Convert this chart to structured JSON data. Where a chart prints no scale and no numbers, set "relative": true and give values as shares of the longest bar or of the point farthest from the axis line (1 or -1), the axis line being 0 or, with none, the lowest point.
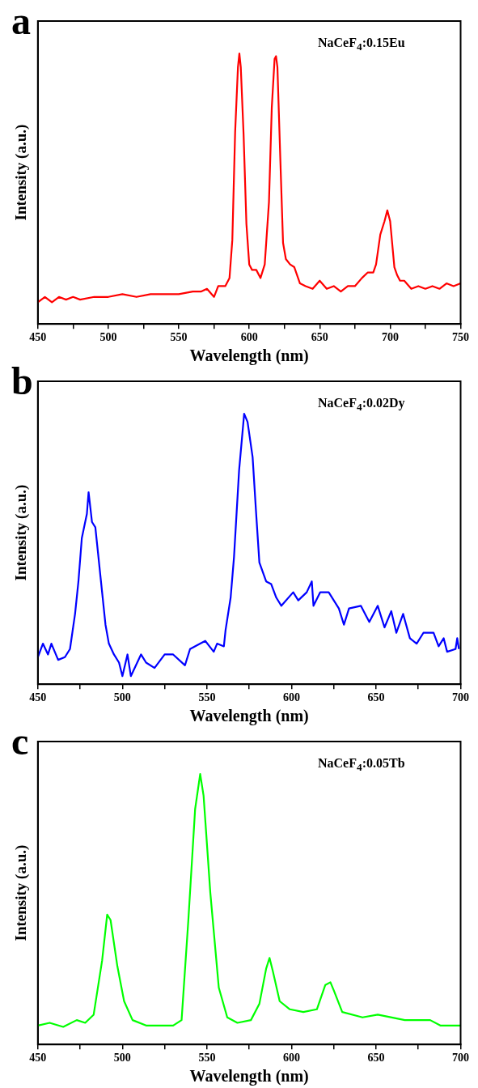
{
  "chart_data": [
    {
      "type": "line",
      "title": "a",
      "xlabel": "Wavelength (nm)",
      "ylabel": "Intensity (a.u.)",
      "relative": true,
      "annotations": [
        "NaCeF$_{4}$:0.15Eu"
      ],
      "xlim": [
        450,
        750
      ],
      "xticks": [
        450,
        {
          "value": 475,
          "label": null
        },
        500,
        {
          "value": 525,
          "label": null
        },
        550,
        {
          "value": 575,
          "label": null
        },
        600,
        {
          "value": 625,
          "label": null
        },
        650,
        {
          "value": 675,
          "label": null
        },
        700,
        {
          "value": 725,
          "label": null
        },
        750
      ],
      "series": [
        {
          "color": "#ff0000",
          "x": [
            450,
            455,
            460,
            465,
            470,
            475,
            480,
            490,
            500,
            510,
            520,
            530,
            540,
            550,
            560,
            566,
            570,
            575,
            578,
            583,
            586,
            588,
            590,
            592,
            593,
            594,
            596,
            598,
            600,
            602,
            605,
            608,
            611,
            614,
            616,
            618,
            619,
            620,
            622,
            624,
            626,
            629,
            632,
            636,
            640,
            645,
            650,
            655,
            660,
            665,
            670,
            675,
            680,
            684,
            688,
            690,
            693,
            696,
            698,
            700,
            703,
            705,
            707,
            710,
            715,
            720,
            725,
            730,
            735,
            740,
            745,
            750
          ],
          "values": [
            0.08,
            0.1,
            0.08,
            0.1,
            0.09,
            0.1,
            0.09,
            0.1,
            0.1,
            0.11,
            0.1,
            0.11,
            0.11,
            0.11,
            0.12,
            0.12,
            0.13,
            0.1,
            0.14,
            0.14,
            0.17,
            0.31,
            0.71,
            0.95,
            1.0,
            0.95,
            0.7,
            0.37,
            0.22,
            0.2,
            0.2,
            0.17,
            0.22,
            0.45,
            0.8,
            0.98,
            0.99,
            0.95,
            0.62,
            0.3,
            0.24,
            0.22,
            0.21,
            0.15,
            0.14,
            0.13,
            0.16,
            0.13,
            0.14,
            0.12,
            0.14,
            0.14,
            0.17,
            0.19,
            0.19,
            0.22,
            0.33,
            0.38,
            0.42,
            0.38,
            0.21,
            0.18,
            0.16,
            0.16,
            0.13,
            0.14,
            0.13,
            0.14,
            0.13,
            0.15,
            0.14,
            0.15
          ]
        }
      ]
    },
    {
      "type": "line",
      "title": "b",
      "xlabel": "Wavelength (nm)",
      "ylabel": "Intensity (a.u.)",
      "relative": true,
      "annotations": [
        "NaCeF$_{4}$:0.02Dy"
      ],
      "xlim": [
        450,
        700
      ],
      "xticks": [
        450,
        {
          "value": 475,
          "label": null
        },
        500,
        {
          "value": 525,
          "label": null
        },
        550,
        {
          "value": 575,
          "label": null
        },
        600,
        {
          "value": 625,
          "label": null
        },
        650,
        {
          "value": 675,
          "label": null
        },
        700
      ],
      "series": [
        {
          "color": "#0000ff",
          "x": [
            450,
            453,
            456,
            458,
            462,
            466,
            469,
            472,
            474,
            476,
            479,
            480,
            482,
            484,
            488,
            490,
            492,
            495,
            498,
            500,
            503,
            505,
            511,
            514,
            519,
            525,
            530,
            537,
            540,
            546,
            549,
            554,
            556,
            560,
            561,
            564,
            566,
            569,
            572,
            574,
            577,
            579,
            581,
            585,
            588,
            591,
            594,
            601,
            604,
            609,
            612,
            613,
            617,
            622,
            628,
            631,
            634,
            641,
            646,
            651,
            655,
            659,
            662,
            666,
            670,
            674,
            678,
            684,
            687,
            690,
            692,
            697,
            698,
            699
          ],
          "values": [
            0.1,
            0.15,
            0.11,
            0.15,
            0.09,
            0.1,
            0.13,
            0.26,
            0.38,
            0.54,
            0.63,
            0.71,
            0.6,
            0.58,
            0.34,
            0.22,
            0.15,
            0.11,
            0.08,
            0.03,
            0.11,
            0.03,
            0.11,
            0.08,
            0.06,
            0.11,
            0.11,
            0.07,
            0.13,
            0.15,
            0.16,
            0.12,
            0.15,
            0.14,
            0.2,
            0.32,
            0.47,
            0.79,
            1.0,
            0.97,
            0.84,
            0.64,
            0.45,
            0.38,
            0.37,
            0.32,
            0.29,
            0.34,
            0.31,
            0.34,
            0.38,
            0.29,
            0.34,
            0.34,
            0.28,
            0.22,
            0.28,
            0.29,
            0.23,
            0.29,
            0.21,
            0.27,
            0.19,
            0.26,
            0.17,
            0.15,
            0.19,
            0.19,
            0.14,
            0.17,
            0.12,
            0.13,
            0.17,
            0.13
          ]
        }
      ]
    },
    {
      "type": "line",
      "title": "c",
      "xlabel": "Wavelength (nm)",
      "ylabel": "Intensity (a.u.)",
      "relative": true,
      "annotations": [
        "NaCeF$_{4}$:0.05Tb"
      ],
      "xlim": [
        450,
        700
      ],
      "xticks": [
        450,
        {
          "value": 475,
          "label": null
        },
        500,
        {
          "value": 525,
          "label": null
        },
        550,
        {
          "value": 575,
          "label": null
        },
        600,
        {
          "value": 625,
          "label": null
        },
        650,
        {
          "value": 675,
          "label": null
        },
        700
      ],
      "series": [
        {
          "color": "#00ff00",
          "x": [
            450,
            457,
            465,
            473,
            478,
            483,
            488,
            491,
            493,
            497,
            501,
            506,
            514,
            530,
            535,
            539,
            543,
            546,
            548,
            552,
            557,
            562,
            568,
            576,
            581,
            585,
            587,
            589,
            593,
            599,
            607,
            615,
            620,
            623,
            625,
            630,
            642,
            651,
            667,
            682,
            688,
            700
          ],
          "values": [
            0.07,
            0.08,
            0.065,
            0.09,
            0.08,
            0.11,
            0.31,
            0.48,
            0.46,
            0.29,
            0.16,
            0.09,
            0.07,
            0.07,
            0.09,
            0.46,
            0.87,
            1.0,
            0.92,
            0.56,
            0.21,
            0.1,
            0.08,
            0.09,
            0.15,
            0.28,
            0.32,
            0.27,
            0.16,
            0.13,
            0.12,
            0.13,
            0.22,
            0.23,
            0.2,
            0.12,
            0.1,
            0.11,
            0.09,
            0.09,
            0.07,
            0.07
          ]
        }
      ]
    }
  ]
}
